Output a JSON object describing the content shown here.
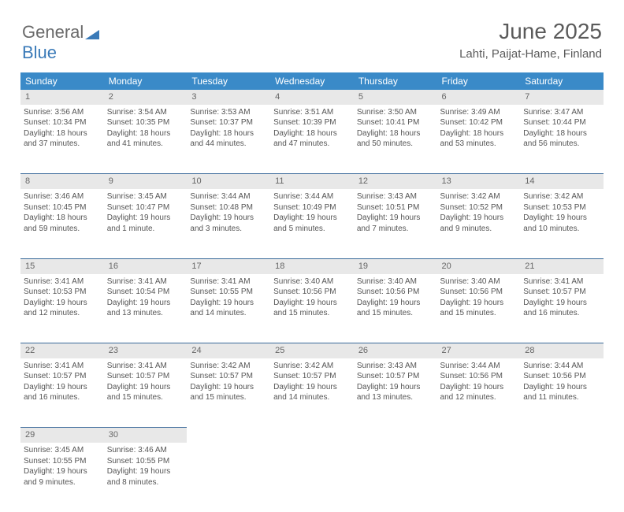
{
  "logo": {
    "text1": "General",
    "text2": "Blue",
    "tri_color": "#3a7ab8"
  },
  "header": {
    "title": "June 2025",
    "location": "Lahti, Paijat-Hame, Finland"
  },
  "colors": {
    "header_bg": "#3a8ac8",
    "daynum_bg": "#e8e8e8",
    "rule": "#3a6a9a"
  },
  "day_headers": [
    "Sunday",
    "Monday",
    "Tuesday",
    "Wednesday",
    "Thursday",
    "Friday",
    "Saturday"
  ],
  "weeks": [
    [
      {
        "n": "1",
        "sr": "3:56 AM",
        "ss": "10:34 PM",
        "dl": "18 hours and 37 minutes."
      },
      {
        "n": "2",
        "sr": "3:54 AM",
        "ss": "10:35 PM",
        "dl": "18 hours and 41 minutes."
      },
      {
        "n": "3",
        "sr": "3:53 AM",
        "ss": "10:37 PM",
        "dl": "18 hours and 44 minutes."
      },
      {
        "n": "4",
        "sr": "3:51 AM",
        "ss": "10:39 PM",
        "dl": "18 hours and 47 minutes."
      },
      {
        "n": "5",
        "sr": "3:50 AM",
        "ss": "10:41 PM",
        "dl": "18 hours and 50 minutes."
      },
      {
        "n": "6",
        "sr": "3:49 AM",
        "ss": "10:42 PM",
        "dl": "18 hours and 53 minutes."
      },
      {
        "n": "7",
        "sr": "3:47 AM",
        "ss": "10:44 PM",
        "dl": "18 hours and 56 minutes."
      }
    ],
    [
      {
        "n": "8",
        "sr": "3:46 AM",
        "ss": "10:45 PM",
        "dl": "18 hours and 59 minutes."
      },
      {
        "n": "9",
        "sr": "3:45 AM",
        "ss": "10:47 PM",
        "dl": "19 hours and 1 minute."
      },
      {
        "n": "10",
        "sr": "3:44 AM",
        "ss": "10:48 PM",
        "dl": "19 hours and 3 minutes."
      },
      {
        "n": "11",
        "sr": "3:44 AM",
        "ss": "10:49 PM",
        "dl": "19 hours and 5 minutes."
      },
      {
        "n": "12",
        "sr": "3:43 AM",
        "ss": "10:51 PM",
        "dl": "19 hours and 7 minutes."
      },
      {
        "n": "13",
        "sr": "3:42 AM",
        "ss": "10:52 PM",
        "dl": "19 hours and 9 minutes."
      },
      {
        "n": "14",
        "sr": "3:42 AM",
        "ss": "10:53 PM",
        "dl": "19 hours and 10 minutes."
      }
    ],
    [
      {
        "n": "15",
        "sr": "3:41 AM",
        "ss": "10:53 PM",
        "dl": "19 hours and 12 minutes."
      },
      {
        "n": "16",
        "sr": "3:41 AM",
        "ss": "10:54 PM",
        "dl": "19 hours and 13 minutes."
      },
      {
        "n": "17",
        "sr": "3:41 AM",
        "ss": "10:55 PM",
        "dl": "19 hours and 14 minutes."
      },
      {
        "n": "18",
        "sr": "3:40 AM",
        "ss": "10:56 PM",
        "dl": "19 hours and 15 minutes."
      },
      {
        "n": "19",
        "sr": "3:40 AM",
        "ss": "10:56 PM",
        "dl": "19 hours and 15 minutes."
      },
      {
        "n": "20",
        "sr": "3:40 AM",
        "ss": "10:56 PM",
        "dl": "19 hours and 15 minutes."
      },
      {
        "n": "21",
        "sr": "3:41 AM",
        "ss": "10:57 PM",
        "dl": "19 hours and 16 minutes."
      }
    ],
    [
      {
        "n": "22",
        "sr": "3:41 AM",
        "ss": "10:57 PM",
        "dl": "19 hours and 16 minutes."
      },
      {
        "n": "23",
        "sr": "3:41 AM",
        "ss": "10:57 PM",
        "dl": "19 hours and 15 minutes."
      },
      {
        "n": "24",
        "sr": "3:42 AM",
        "ss": "10:57 PM",
        "dl": "19 hours and 15 minutes."
      },
      {
        "n": "25",
        "sr": "3:42 AM",
        "ss": "10:57 PM",
        "dl": "19 hours and 14 minutes."
      },
      {
        "n": "26",
        "sr": "3:43 AM",
        "ss": "10:57 PM",
        "dl": "19 hours and 13 minutes."
      },
      {
        "n": "27",
        "sr": "3:44 AM",
        "ss": "10:56 PM",
        "dl": "19 hours and 12 minutes."
      },
      {
        "n": "28",
        "sr": "3:44 AM",
        "ss": "10:56 PM",
        "dl": "19 hours and 11 minutes."
      }
    ],
    [
      {
        "n": "29",
        "sr": "3:45 AM",
        "ss": "10:55 PM",
        "dl": "19 hours and 9 minutes."
      },
      {
        "n": "30",
        "sr": "3:46 AM",
        "ss": "10:55 PM",
        "dl": "19 hours and 8 minutes."
      },
      null,
      null,
      null,
      null,
      null
    ]
  ],
  "labels": {
    "sunrise": "Sunrise: ",
    "sunset": "Sunset: ",
    "daylight": "Daylight: "
  }
}
